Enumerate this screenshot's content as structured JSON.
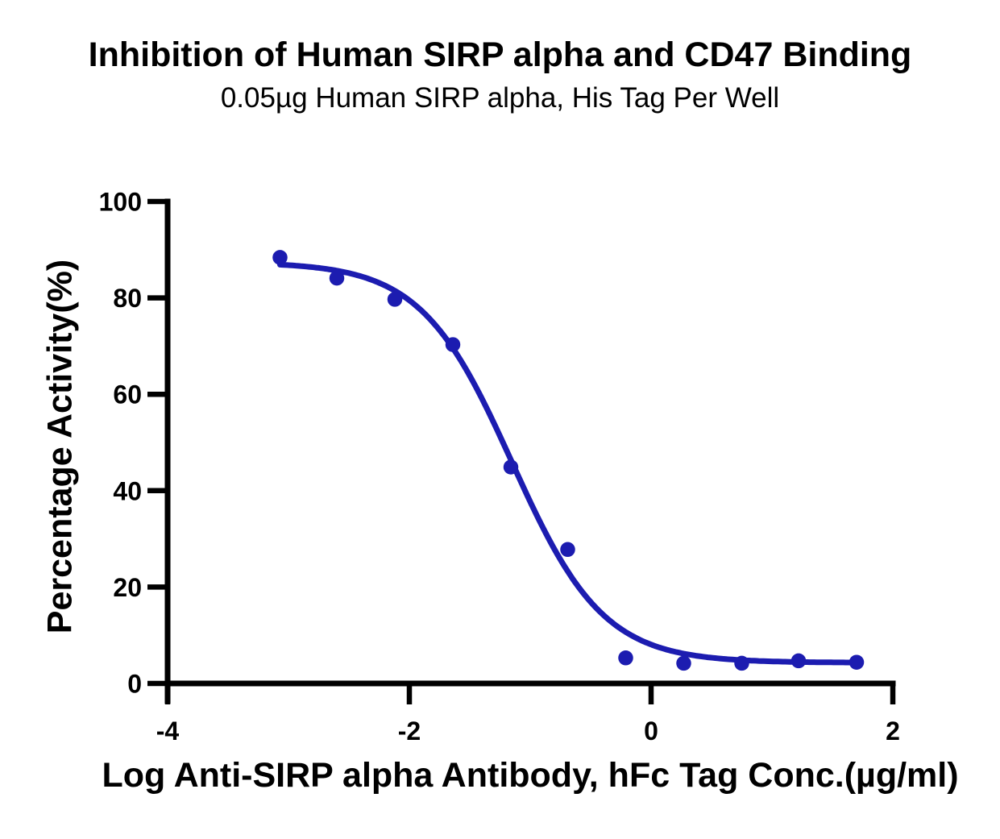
{
  "chart_data": {
    "type": "scatter",
    "title": "Inhibition of Human SIRP alpha and CD47 Binding",
    "subtitle": "0.05µg Human SIRP alpha, His Tag Per Well",
    "xlabel": "Log Anti-SIRP alpha Antibody, hFc Tag Conc.(µg/ml)",
    "ylabel": "Percentage Activity(%)",
    "xlim": [
      -4,
      2
    ],
    "ylim": [
      0,
      100
    ],
    "x_ticks": [
      -4,
      -2,
      0,
      2
    ],
    "y_ticks": [
      0,
      20,
      40,
      60,
      80,
      100
    ],
    "grid": false,
    "legend": "none",
    "series": [
      {
        "marker": "circle",
        "color": "#1c1cb0",
        "x": [
          -3.07,
          -2.6,
          -2.12,
          -1.64,
          -1.16,
          -0.69,
          -0.21,
          0.27,
          0.75,
          1.22,
          1.7
        ],
        "y": [
          88.4,
          84.1,
          79.7,
          70.3,
          44.9,
          27.8,
          5.3,
          4.2,
          4.2,
          4.7,
          4.4
        ]
      }
    ],
    "fit_curve": {
      "model": "four_parameter_logistic",
      "top": 87.4,
      "bottom": 4.3,
      "log_ic50": -1.15,
      "hill_slope": 1.15,
      "x_start": -3.07,
      "x_end": 1.7,
      "color": "#1c1cb0"
    },
    "colors": {
      "points": "#1c1cb0",
      "curve": "#1c1cb0",
      "axis": "#000000",
      "text": "#000000",
      "background": "#ffffff"
    }
  }
}
